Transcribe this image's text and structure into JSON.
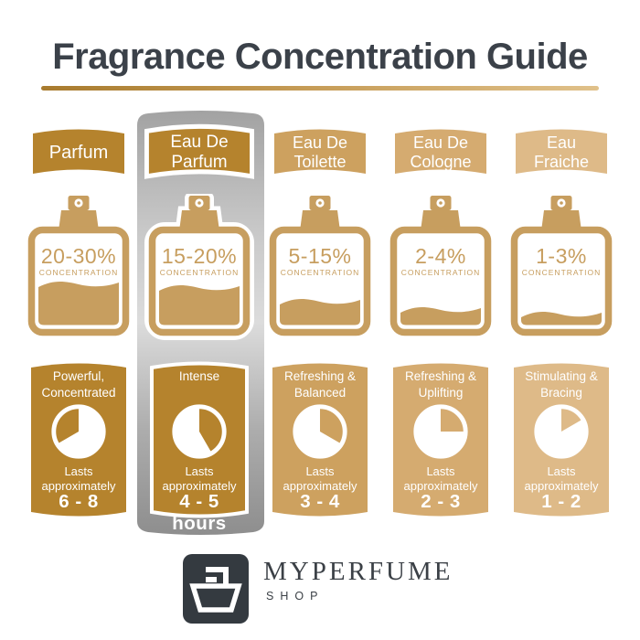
{
  "title": "Fragrance Concentration Guide",
  "labels": {
    "concentration": "CONCENTRATION",
    "lasts": "Lasts",
    "approximately": "approximately"
  },
  "brand": {
    "name": "MYPERFUME",
    "sub": "SHOP"
  },
  "colors": {
    "title_text": "#3b4149",
    "rule_gradient_left": "#a87b2e",
    "rule_gradient_right": "#e0c18a",
    "bottle_tan": "#c79e5f",
    "gold_dark": "#b5832d",
    "gold_mid": "#cda15f",
    "gold_light": "#d5ab70",
    "gold_lightest": "#deba88",
    "panel_gray_top": "#a2a2a2",
    "panel_gray_mid": "#dcdcdc",
    "panel_gray_bottom": "#8e8e8e",
    "logo_bg": "#343a40",
    "text_on_gold": "#ffffff"
  },
  "columns": [
    {
      "name": "Parfum",
      "name_lines": [
        "Parfum"
      ],
      "accent": "#b5832d",
      "highlighted": false,
      "concentration": "20-30%",
      "fill_level": 0.45,
      "character_lines": [
        "Powerful,",
        "Concentrated"
      ],
      "duration": "6 - 8 hours",
      "clock": {
        "white_start_deg": 0,
        "white_sweep_deg": 240
      }
    },
    {
      "name": "Eau De Parfum",
      "name_lines": [
        "Eau De",
        "Parfum"
      ],
      "accent": "#b5832d",
      "highlighted": true,
      "concentration": "15-20%",
      "fill_level": 0.41,
      "character_lines": [
        "Intense"
      ],
      "duration": "4 - 5 hours",
      "clock": {
        "white_start_deg": 150,
        "white_sweep_deg": 210
      }
    },
    {
      "name": "Eau De Toilette",
      "name_lines": [
        "Eau De",
        "Toilette"
      ],
      "accent": "#cda15f",
      "highlighted": false,
      "concentration": "5-15%",
      "fill_level": 0.26,
      "character_lines": [
        "Refreshing &",
        "Balanced"
      ],
      "duration": "3 - 4 hours",
      "clock": {
        "white_start_deg": 120,
        "white_sweep_deg": 240
      }
    },
    {
      "name": "Eau De Cologne",
      "name_lines": [
        "Eau De",
        "Cologne"
      ],
      "accent": "#d5ab70",
      "highlighted": false,
      "concentration": "2-4%",
      "fill_level": 0.17,
      "character_lines": [
        "Refreshing &",
        "Uplifting"
      ],
      "duration": "2 - 3 hours",
      "clock": {
        "white_start_deg": 90,
        "white_sweep_deg": 270
      }
    },
    {
      "name": "Eau Fraiche",
      "name_lines": [
        "Eau",
        "Fraiche"
      ],
      "accent": "#deba88",
      "highlighted": false,
      "concentration": "1-3%",
      "fill_level": 0.12,
      "character_lines": [
        "Stimulating &",
        "Bracing"
      ],
      "duration": "1 - 2 hours",
      "clock": {
        "white_start_deg": 60,
        "white_sweep_deg": 300
      }
    }
  ]
}
